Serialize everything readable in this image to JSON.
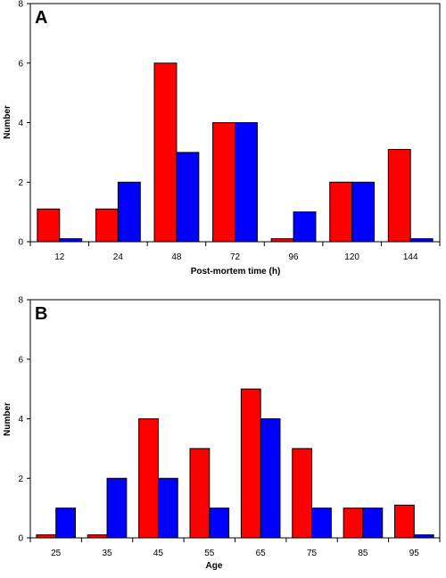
{
  "colors": {
    "series_1": "#ff0000",
    "series_2": "#0000ff",
    "plot_border": "#000000",
    "background": "#ffffff"
  },
  "chart_data": [
    {
      "type": "bar",
      "panel_label": "A",
      "categories": [
        "12",
        "24",
        "48",
        "72",
        "96",
        "120",
        "144"
      ],
      "series": [
        {
          "values": [
            1.1,
            1.1,
            6,
            4,
            0.1,
            2,
            3.1
          ]
        },
        {
          "values": [
            0.1,
            2,
            3,
            4,
            1,
            2,
            0.1
          ]
        }
      ],
      "xlabel": "Post-mortem time (h)",
      "ylabel": "Number",
      "ylim": [
        0,
        8
      ],
      "yticks": [
        "0",
        "2",
        "4",
        "6",
        "8"
      ],
      "grid": false,
      "legend": "none"
    },
    {
      "type": "bar",
      "panel_label": "B",
      "categories": [
        "25",
        "35",
        "45",
        "55",
        "65",
        "75",
        "85",
        "95"
      ],
      "series": [
        {
          "values": [
            0.1,
            0.1,
            4,
            3,
            5,
            3,
            1,
            1.1
          ]
        },
        {
          "values": [
            1,
            2,
            2,
            1,
            4,
            1,
            1,
            0.1
          ]
        }
      ],
      "xlabel": "Age",
      "ylabel": "Number",
      "ylim": [
        0,
        8
      ],
      "yticks": [
        "0",
        "2",
        "4",
        "6",
        "8"
      ],
      "grid": false,
      "legend": "none"
    }
  ]
}
